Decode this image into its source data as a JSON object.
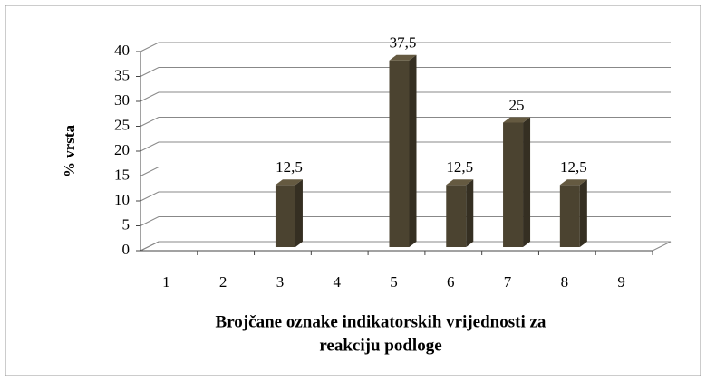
{
  "chart_data": {
    "type": "bar3d",
    "categories": [
      "1",
      "2",
      "3",
      "4",
      "5",
      "6",
      "7",
      "8",
      "9"
    ],
    "values": [
      0,
      0,
      12.5,
      0,
      37.5,
      12.5,
      25,
      12.5,
      0
    ],
    "value_labels": [
      null,
      null,
      "12,5",
      null,
      "37,5",
      "12,5",
      "25",
      "12,5",
      null
    ],
    "color": "#4b4330",
    "ylabel": "% vrsta",
    "xlabel": [
      "Brojčane oznake indikatorskih vrijednosti za",
      "reakciju podloge"
    ],
    "ylim": [
      0,
      40
    ],
    "yticks": [
      0,
      5,
      10,
      15,
      20,
      25,
      30,
      35,
      40
    ],
    "grid": true
  }
}
